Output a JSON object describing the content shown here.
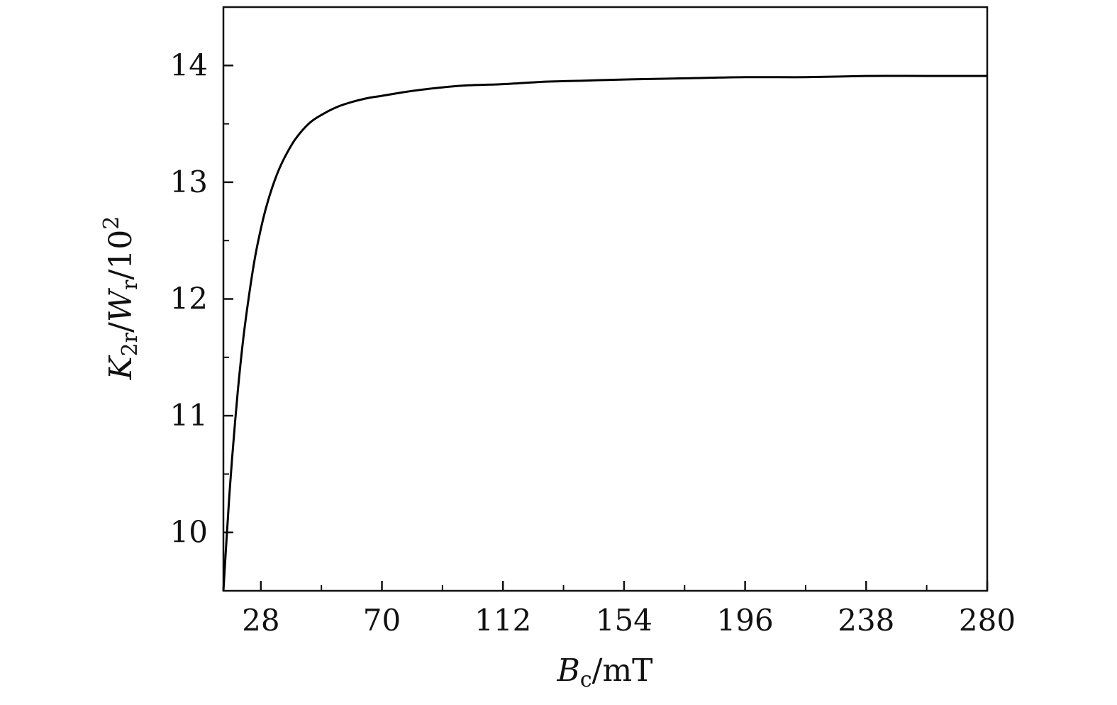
{
  "chart_data": {
    "type": "line",
    "title": "",
    "xlabel": {
      "main": "B",
      "sub": "c",
      "rest": "/mT"
    },
    "ylabel": {
      "k": "K",
      "k_sub": "2r",
      "sep1": "/",
      "w": "W",
      "w_sub": "r",
      "sep2": "/10",
      "exp": "2"
    },
    "xlim": [
      15,
      280
    ],
    "ylim": [
      9.5,
      14.5
    ],
    "xticks": [
      28,
      70,
      112,
      154,
      196,
      238,
      280
    ],
    "yticks": [
      10,
      11,
      12,
      13,
      14
    ],
    "grid": false,
    "legend": "none",
    "line_color": "#000000",
    "series": [
      {
        "x": [
          15,
          16,
          17,
          18,
          20,
          22,
          24,
          26,
          28,
          30,
          33,
          36,
          40,
          45,
          50,
          55,
          60,
          65,
          70,
          80,
          90,
          100,
          112,
          126,
          140,
          154,
          175,
          196,
          217,
          238,
          259,
          280
        ],
        "values": [
          9.5,
          9.91,
          10.29,
          10.63,
          11.21,
          11.68,
          12.05,
          12.36,
          12.6,
          12.8,
          13.03,
          13.2,
          13.37,
          13.51,
          13.59,
          13.65,
          13.69,
          13.72,
          13.74,
          13.78,
          13.81,
          13.83,
          13.84,
          13.86,
          13.87,
          13.88,
          13.89,
          13.9,
          13.9,
          13.91,
          13.91,
          13.91
        ]
      }
    ]
  }
}
